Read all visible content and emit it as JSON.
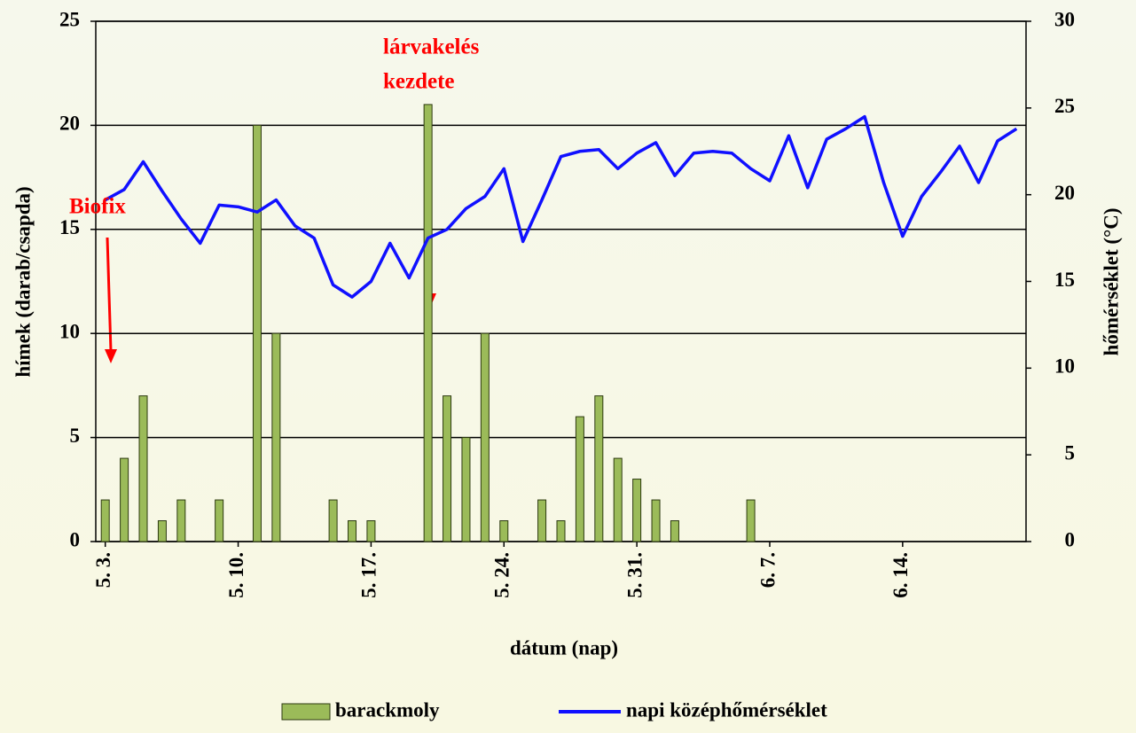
{
  "chart_data": {
    "type": "bar_line",
    "x_label": "dátum (nap)",
    "y_label": "hímek (darab/csapda)",
    "y2_label": "hőmérséklet (°C)",
    "categories": [
      "5. 3.",
      null,
      null,
      null,
      null,
      null,
      null,
      "5. 10.",
      null,
      null,
      null,
      null,
      null,
      null,
      "5. 17.",
      null,
      null,
      null,
      null,
      null,
      null,
      "5. 24.",
      null,
      null,
      null,
      null,
      null,
      null,
      "5. 31.",
      null,
      null,
      null,
      null,
      null,
      null,
      "6. 7.",
      null,
      null,
      null,
      null,
      null,
      null,
      "6. 14.",
      null,
      null,
      null,
      null,
      null,
      null
    ],
    "series": [
      {
        "name": "barackmoly",
        "type": "bar",
        "color": "#9bbb59",
        "axis": "y",
        "values": [
          2,
          4,
          7,
          1,
          2,
          0,
          2,
          0,
          20,
          10,
          0,
          0,
          2,
          1,
          1,
          0,
          0,
          21,
          7,
          5,
          10,
          1,
          0,
          2,
          1,
          6,
          7,
          4,
          3,
          2,
          1,
          0,
          0,
          0,
          2,
          0,
          0,
          0,
          0,
          0,
          0,
          0,
          0,
          0,
          0,
          0,
          0,
          0,
          0
        ]
      },
      {
        "name": "napi középhőmérséklet",
        "type": "line",
        "color": "#1010ff",
        "axis": "y2",
        "values": [
          19.7,
          20.3,
          21.9,
          20.2,
          18.6,
          17.2,
          19.4,
          19.3,
          19.0,
          19.7,
          18.2,
          17.5,
          14.8,
          14.1,
          15.0,
          17.2,
          15.2,
          17.5,
          18.0,
          19.2,
          19.9,
          21.5,
          17.3,
          19.7,
          22.2,
          22.5,
          22.6,
          21.5,
          22.4,
          23.0,
          21.1,
          22.4,
          22.5,
          22.4,
          21.5,
          20.8,
          23.4,
          20.4,
          23.2,
          23.8,
          24.5,
          20.7,
          17.6,
          19.9,
          21.3,
          22.8,
          20.7,
          23.1,
          23.8
        ]
      }
    ],
    "ylim": [
      0,
      25
    ],
    "yticks": [
      0,
      5,
      10,
      15,
      20,
      25
    ],
    "y2lim": [
      0,
      30
    ],
    "y2ticks": [
      0,
      5,
      10,
      15,
      20,
      25,
      30
    ],
    "grid": true,
    "legend": "bottom",
    "annotations": [
      {
        "lines": [
          "Biofix"
        ],
        "color": "#ff0000"
      },
      {
        "lines": [
          "lárvakelés",
          "kezdete"
        ],
        "color": "#ff0000"
      }
    ]
  }
}
